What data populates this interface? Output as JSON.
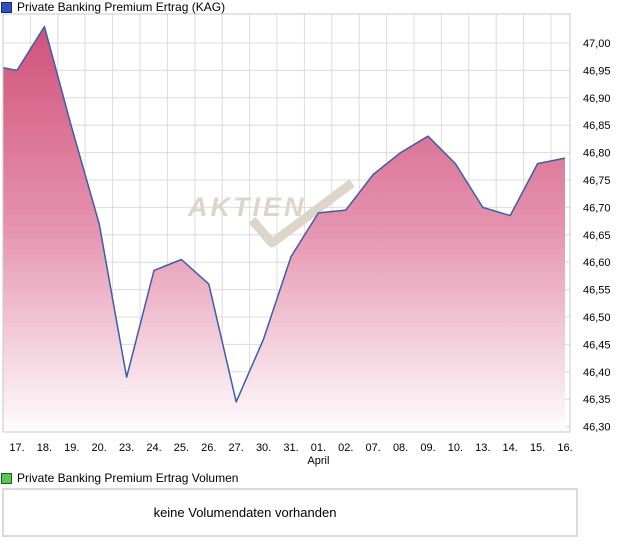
{
  "header": {
    "series_label": "Private Banking Premium Ertrag (KAG)"
  },
  "volume_section": {
    "series_label": "Private Banking Premium Ertrag Volumen",
    "message": "keine Volumendaten vorhanden"
  },
  "watermark_text": "AKTIEN",
  "colors": {
    "price_legend_square": "#2b50c8",
    "price_legend_border": "#172a66",
    "volume_legend_square": "#55c855",
    "volume_legend_border": "#1e5c1e",
    "line": "#3a5dad",
    "area_top": "#ce4e77",
    "area_mid": "#e592ae",
    "area_bottom": "#ffffff",
    "grid": "#dcdcdc",
    "border": "#c9c9c9",
    "watermark": "#ddd5c8",
    "text": "#000000"
  },
  "chart_data": {
    "type": "area",
    "title": "Private Banking Premium Ertrag (KAG)",
    "series": [
      {
        "name": "Private Banking Premium Ertrag (KAG)",
        "values": [
          46.95,
          47.03,
          46.845,
          46.67,
          46.39,
          46.585,
          46.605,
          46.56,
          46.345,
          46.46,
          46.61,
          46.69,
          46.695,
          46.76,
          46.8,
          46.83,
          46.78,
          46.7,
          46.685,
          46.78,
          46.79
        ]
      }
    ],
    "categories": [
      "17.",
      "18.",
      "19.",
      "20.",
      "23.",
      "24.",
      "25.",
      "26.",
      "27.",
      "30.",
      "31.",
      "01.",
      "02.",
      "07.",
      "08.",
      "09.",
      "10.",
      "13.",
      "14.",
      "15.",
      "16."
    ],
    "month_label": "April",
    "month_under_category": "01.",
    "y_ticks": {
      "values": [
        47.0,
        46.95,
        46.9,
        46.85,
        46.8,
        46.75,
        46.7,
        46.65,
        46.6,
        46.55,
        46.5,
        46.45,
        46.4,
        46.35,
        46.3
      ],
      "labels": [
        "47,00",
        "46,95",
        "46,90",
        "46,85",
        "46,80",
        "46,75",
        "46,70",
        "46,65",
        "46,60",
        "46,55",
        "46,50",
        "46,45",
        "46,40",
        "46,35",
        "46,30"
      ]
    },
    "ylim": [
      46.287,
      47.052
    ],
    "axis_side": "right",
    "edge_start_value": 46.955,
    "grid": true,
    "legend_position": "top-left"
  }
}
